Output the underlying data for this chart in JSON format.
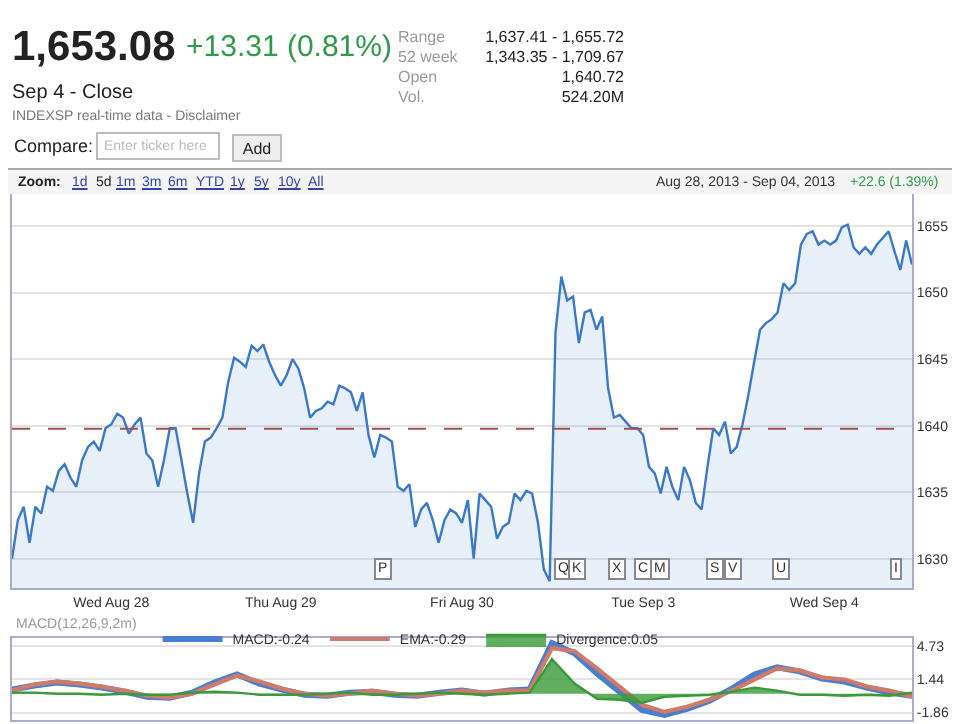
{
  "chart_data": [
    {
      "type": "area",
      "color": "#3a78c9",
      "annotations": [
        "1,653.08",
        "+13.31 (0.81%)",
        "Sep 4 - Close",
        "INDEXSP real-time data - Disclaimer",
        "Range",
        "1,637.41 - 1,655.72",
        "52 week",
        "1,343.35 - 1,709.67",
        "Open",
        "1,640.72",
        "Vol.",
        "524.20M",
        "Compare:",
        "Enter ticker here",
        "Add",
        "Zoom:",
        "1d",
        "5d",
        "1m",
        "3m",
        "6m",
        "YTD",
        "1y",
        "5y",
        "10y",
        "All",
        "Aug 28, 2013 - Sep 04, 2013",
        "+22.6 (1.39%)",
        "P",
        "Q",
        "K",
        "X",
        "C",
        "M",
        "S",
        "V",
        "U",
        "I"
      ],
      "categories": [
        null,
        null,
        null,
        null,
        null,
        null,
        null,
        null,
        null,
        null,
        null,
        null,
        null,
        null,
        null,
        null,
        null,
        "Wed Aug 28",
        null,
        null,
        null,
        null,
        null,
        null,
        null,
        null,
        null,
        null,
        null,
        null,
        null,
        null,
        null,
        null,
        null,
        null,
        null,
        null,
        null,
        null,
        null,
        null,
        null,
        null,
        null,
        null,
        "Thu Aug 29",
        null,
        null,
        null,
        null,
        null,
        null,
        null,
        null,
        null,
        null,
        null,
        null,
        null,
        null,
        null,
        null,
        null,
        null,
        null,
        null,
        null,
        null,
        null,
        null,
        null,
        null,
        null,
        null,
        null,
        null,
        "Fri Aug 30",
        null,
        null,
        null,
        null,
        null,
        null,
        null,
        null,
        null,
        null,
        null,
        null,
        null,
        null,
        null,
        null,
        null,
        null,
        null,
        null,
        null,
        null,
        null,
        null,
        null,
        null,
        null,
        null,
        null,
        null,
        "Tue Sep 3",
        null,
        null,
        null,
        null,
        null,
        null,
        null,
        null,
        null,
        null,
        null,
        null,
        null,
        null,
        null,
        null,
        null,
        null,
        null,
        null,
        null,
        null,
        null,
        null,
        null,
        null,
        null,
        null,
        null,
        null,
        "Wed Sep 4",
        null,
        null,
        null,
        null,
        null,
        null,
        null,
        null,
        null,
        null,
        null,
        null,
        null,
        null,
        null
      ],
      "values": [
        1630.0,
        1632.9,
        1633.9,
        1631.2,
        1633.9,
        1633.4,
        1635.4,
        1635.1,
        1636.6,
        1637.1,
        1636.1,
        1635.4,
        1637.4,
        1638.4,
        1638.8,
        1638.1,
        1639.8,
        1640.1,
        1640.9,
        1640.6,
        1639.4,
        1640.1,
        1640.6,
        1637.9,
        1637.4,
        1635.4,
        1637.4,
        1639.8,
        1639.8,
        1637.4,
        1634.9,
        1632.7,
        1636.4,
        1638.8,
        1639.1,
        1639.8,
        1640.6,
        1643.3,
        1645.1,
        1644.8,
        1644.4,
        1646.0,
        1645.6,
        1646.1,
        1644.8,
        1643.8,
        1643.0,
        1643.8,
        1645.0,
        1644.3,
        1642.8,
        1640.6,
        1641.1,
        1641.3,
        1641.8,
        1641.6,
        1643.0,
        1642.8,
        1642.5,
        1641.1,
        1642.5,
        1639.3,
        1637.6,
        1639.3,
        1639.1,
        1638.8,
        1635.4,
        1635.1,
        1635.6,
        1632.4,
        1633.7,
        1634.2,
        1632.9,
        1631.2,
        1632.9,
        1633.7,
        1633.4,
        1632.7,
        1634.4,
        1630.0,
        1634.9,
        1634.4,
        1633.9,
        1631.5,
        1632.4,
        1632.7,
        1634.9,
        1634.4,
        1635.1,
        1634.9,
        1632.7,
        1629.2,
        1628.3,
        1647.0,
        1651.2,
        1649.4,
        1649.7,
        1646.2,
        1648.5,
        1648.7,
        1647.2,
        1648.2,
        1642.8,
        1640.6,
        1640.8,
        1640.3,
        1639.8,
        1639.8,
        1639.3,
        1636.9,
        1636.4,
        1634.9,
        1636.9,
        1635.4,
        1634.4,
        1636.9,
        1635.9,
        1634.2,
        1633.7,
        1636.9,
        1639.8,
        1639.3,
        1640.3,
        1637.9,
        1638.4,
        1640.1,
        1642.3,
        1644.8,
        1647.2,
        1647.7,
        1648.0,
        1648.5,
        1650.7,
        1650.2,
        1650.7,
        1653.6,
        1654.4,
        1654.6,
        1653.6,
        1653.9,
        1653.6,
        1653.9,
        1654.9,
        1655.1,
        1653.4,
        1652.9,
        1653.4,
        1652.9,
        1653.6,
        1654.1,
        1654.6,
        1653.1,
        1651.7,
        1653.9,
        1652.1
      ],
      "ylim": [
        1627.8,
        1657.4
      ],
      "yticks": [
        1630,
        1635,
        1640,
        1645,
        1650,
        1655
      ],
      "ref_lines": [
        {
          "axis": "y",
          "value": 1639.77,
          "color": "#a05050",
          "line_style": "dashed"
        }
      ],
      "grid": "y",
      "legend": false
    },
    {
      "type": "line",
      "legend_title": "MACD(12,26,9,2m)",
      "categories": [
        null,
        null,
        null,
        null,
        null,
        null,
        null,
        null,
        null,
        null,
        null,
        null,
        null,
        null,
        null,
        null,
        null,
        null,
        null,
        null,
        null,
        null,
        null,
        null,
        null,
        null,
        null,
        null,
        null,
        null,
        null,
        null,
        null,
        null,
        null,
        null,
        null,
        null,
        null,
        null,
        null
      ],
      "series": [
        {
          "name": "MACD:-0.24",
          "color": "#4a7fd0",
          "values": [
            0.4,
            0.8,
            1.1,
            0.9,
            0.6,
            0.2,
            -0.3,
            -0.4,
            0.1,
            1.1,
            1.9,
            1.0,
            0.4,
            -0.1,
            -0.2,
            0.1,
            0.2,
            -0.1,
            -0.2,
            0.1,
            0.3,
            0.0,
            0.3,
            0.4,
            5.0,
            4.0,
            2.0,
            0.2,
            -1.6,
            -2.1,
            -1.5,
            -0.7,
            0.5,
            1.9,
            2.6,
            2.2,
            1.5,
            1.2,
            0.6,
            0.1,
            -0.2
          ]
        },
        {
          "name": "EMA:-0.29",
          "color": "#d07a6a",
          "values": [
            0.3,
            0.9,
            1.2,
            1.0,
            0.7,
            0.3,
            -0.2,
            -0.4,
            0,
            0.9,
            1.8,
            1.2,
            0.5,
            0,
            -0.2,
            0,
            0.3,
            0,
            -0.2,
            0,
            0.3,
            0.1,
            0.3,
            0.3,
            4.5,
            4.2,
            2.5,
            0.7,
            -1.1,
            -1.8,
            -1.3,
            -0.6,
            0.3,
            1.4,
            2.5,
            2.3,
            1.6,
            1.4,
            0.7,
            0.3,
            -0.3
          ]
        },
        {
          "name": "Divergence:0.05",
          "type": "area",
          "color": "#3a9a3a",
          "values": [
            0.1,
            0.1,
            0,
            0,
            -0.1,
            0,
            -0.1,
            -0.1,
            0.1,
            0.2,
            0.1,
            -0.1,
            -0.1,
            -0.1,
            0,
            0.1,
            -0.1,
            -0.1,
            0,
            0.1,
            0,
            -0.1,
            0,
            0.1,
            3.4,
            1.0,
            -0.5,
            -0.6,
            -0.9,
            -0.3,
            -0.2,
            -0.1,
            0.2,
            0.6,
            0.3,
            -0.1,
            -0.1,
            -0.2,
            -0.1,
            -0.2,
            0.1
          ]
        }
      ],
      "ylim": [
        -2.6,
        5.5
      ],
      "yticks": [
        -1.86,
        1.44,
        4.73
      ],
      "tick_labels": "y",
      "grid": "y",
      "legend": "top left"
    }
  ]
}
